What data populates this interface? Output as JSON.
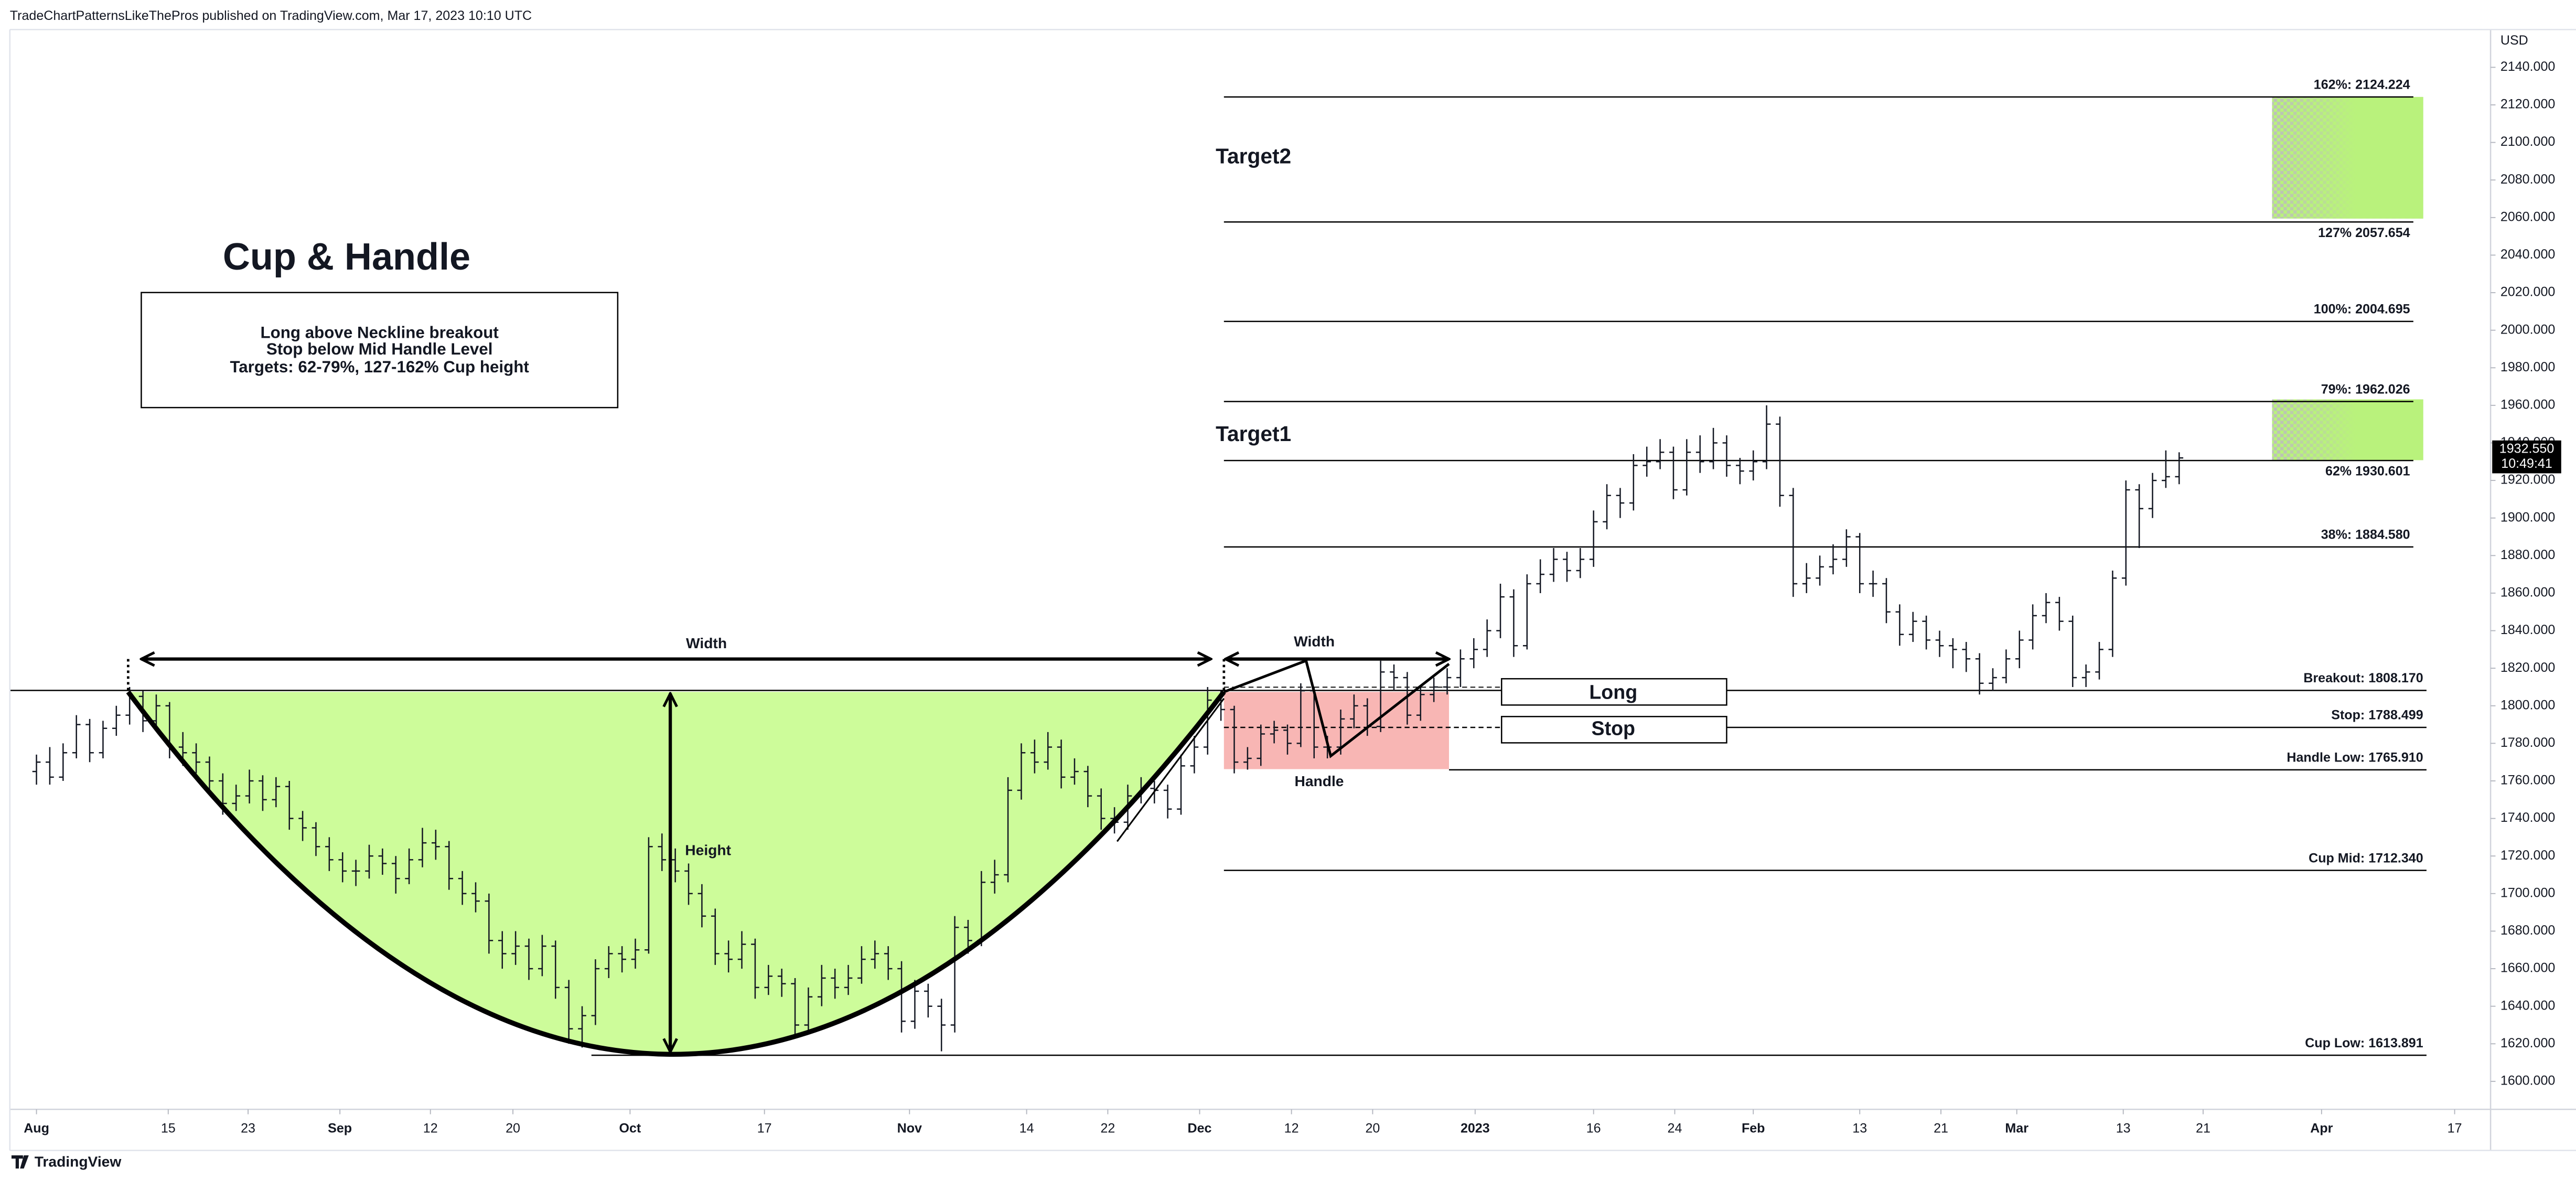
{
  "header": "TradeChartPatternsLikeThePros published on TradingView.com, Mar 17, 2023 10:10 UTC",
  "footer": "TradingView",
  "chart_data": {
    "type": "ohlc",
    "title": "Cup & Handle",
    "currency": "USD",
    "color": "#131722",
    "notes": [
      "Long above Neckline breakout",
      "Stop below Mid Handle Level",
      "Targets: 62-79%, 127-162% Cup height"
    ],
    "annotations": {
      "cup_width": "Width",
      "cup_height": "Height",
      "handle": "Handle",
      "handle_width": "Width",
      "target1": "Target1",
      "target2": "Target2",
      "long": "Long",
      "stop": "Stop"
    },
    "levels": [
      {
        "label": "162%: 2124.224",
        "value": 2124.224
      },
      {
        "label": "127% 2057.654",
        "value": 2057.654
      },
      {
        "label": "100%: 2004.695",
        "value": 2004.695
      },
      {
        "label": "79%: 1962.026",
        "value": 1962.026
      },
      {
        "label": "62% 1930.601",
        "value": 1930.601
      },
      {
        "label": "38%: 1884.580",
        "value": 1884.58
      },
      {
        "label": "Breakout: 1808.170",
        "value": 1808.17
      },
      {
        "label": "Stop: 1788.499",
        "value": 1788.499
      },
      {
        "label": "Handle Low: 1765.910",
        "value": 1765.91
      },
      {
        "label": "Cup Mid: 1712.340",
        "value": 1712.34
      },
      {
        "label": "Cup Low: 1613.891",
        "value": 1613.891
      }
    ],
    "last_price": {
      "value": 1932.55,
      "label": "1932.550",
      "countdown": "10:49:41"
    },
    "xlim": [
      -2,
      184.4
    ],
    "xticks": [
      {
        "value": 0,
        "label": "Aug"
      },
      {
        "value": 9.9,
        "label": "15"
      },
      {
        "value": 15.9,
        "label": "23"
      },
      {
        "value": 22.8,
        "label": "Sep"
      },
      {
        "value": 29.6,
        "label": "12"
      },
      {
        "value": 35.8,
        "label": "20"
      },
      {
        "value": 44.6,
        "label": "Oct"
      },
      {
        "value": 54.7,
        "label": "17"
      },
      {
        "value": 65.6,
        "label": "Nov"
      },
      {
        "value": 74.4,
        "label": "14"
      },
      {
        "value": 80.5,
        "label": "22"
      },
      {
        "value": 87.4,
        "label": "Dec"
      },
      {
        "value": 94.3,
        "label": "12"
      },
      {
        "value": 100.4,
        "label": "20"
      },
      {
        "value": 108.1,
        "label": "2023"
      },
      {
        "value": 117,
        "label": "16"
      },
      {
        "value": 123.1,
        "label": "24"
      },
      {
        "value": 129,
        "label": "Feb"
      },
      {
        "value": 137,
        "label": "13"
      },
      {
        "value": 143.1,
        "label": "21"
      },
      {
        "value": 148.8,
        "label": "Mar"
      },
      {
        "value": 156.8,
        "label": "13"
      },
      {
        "value": 162.8,
        "label": "21"
      },
      {
        "value": 171.7,
        "label": "Apr"
      },
      {
        "value": 181.7,
        "label": "17"
      }
    ],
    "ylim": [
      1585.1,
      2160.1
    ],
    "yticks": [
      {
        "value": 1600,
        "label": "1600.000"
      },
      {
        "value": 1620,
        "label": "1620.000"
      },
      {
        "value": 1640,
        "label": "1640.000"
      },
      {
        "value": 1660,
        "label": "1660.000"
      },
      {
        "value": 1680,
        "label": "1680.000"
      },
      {
        "value": 1700,
        "label": "1700.000"
      },
      {
        "value": 1720,
        "label": "1720.000"
      },
      {
        "value": 1740,
        "label": "1740.000"
      },
      {
        "value": 1760,
        "label": "1760.000"
      },
      {
        "value": 1780,
        "label": "1780.000"
      },
      {
        "value": 1800,
        "label": "1800.000"
      },
      {
        "value": 1820,
        "label": "1820.000"
      },
      {
        "value": 1840,
        "label": "1840.000"
      },
      {
        "value": 1860,
        "label": "1860.000"
      },
      {
        "value": 1880,
        "label": "1880.000"
      },
      {
        "value": 1900,
        "label": "1900.000"
      },
      {
        "value": 1920,
        "label": "1920.000"
      },
      {
        "value": 1940,
        "label": "1940.000"
      },
      {
        "value": 1960,
        "label": "1960.000"
      },
      {
        "value": 1980,
        "label": "1980.000"
      },
      {
        "value": 2000,
        "label": "2000.000"
      },
      {
        "value": 2020,
        "label": "2020.000"
      },
      {
        "value": 2040,
        "label": "2040.000"
      },
      {
        "value": 2060,
        "label": "2060.000"
      },
      {
        "value": 2080,
        "label": "2080.000"
      },
      {
        "value": 2100,
        "label": "2100.000"
      },
      {
        "value": 2120,
        "label": "2120.000"
      },
      {
        "value": 2140,
        "label": "2140.000"
      }
    ],
    "ohlc": [
      [
        1765,
        1774,
        1758,
        1770
      ],
      [
        1770,
        1778,
        1758,
        1762
      ],
      [
        1762,
        1780,
        1760,
        1775
      ],
      [
        1775,
        1795,
        1772,
        1790
      ],
      [
        1790,
        1793,
        1770,
        1775
      ],
      [
        1775,
        1792,
        1772,
        1788
      ],
      [
        1788,
        1800,
        1784,
        1795
      ],
      [
        1795,
        1810,
        1790,
        1805
      ],
      [
        1805,
        1808,
        1786,
        1792
      ],
      [
        1792,
        1806,
        1788,
        1800
      ],
      [
        1800,
        1802,
        1772,
        1778
      ],
      [
        1778,
        1786,
        1768,
        1775
      ],
      [
        1775,
        1780,
        1764,
        1770
      ],
      [
        1770,
        1773,
        1755,
        1760
      ],
      [
        1760,
        1764,
        1742,
        1748
      ],
      [
        1748,
        1758,
        1744,
        1752
      ],
      [
        1752,
        1766,
        1748,
        1760
      ],
      [
        1760,
        1763,
        1744,
        1750
      ],
      [
        1750,
        1762,
        1746,
        1757
      ],
      [
        1757,
        1760,
        1734,
        1740
      ],
      [
        1740,
        1744,
        1728,
        1735
      ],
      [
        1735,
        1738,
        1720,
        1725
      ],
      [
        1725,
        1730,
        1712,
        1718
      ],
      [
        1718,
        1722,
        1706,
        1712
      ],
      [
        1712,
        1718,
        1704,
        1712
      ],
      [
        1712,
        1726,
        1708,
        1720
      ],
      [
        1720,
        1724,
        1710,
        1716
      ],
      [
        1716,
        1720,
        1700,
        1708
      ],
      [
        1708,
        1724,
        1705,
        1718
      ],
      [
        1718,
        1735,
        1714,
        1727
      ],
      [
        1727,
        1734,
        1718,
        1725
      ],
      [
        1725,
        1728,
        1702,
        1708
      ],
      [
        1708,
        1712,
        1694,
        1700
      ],
      [
        1700,
        1706,
        1690,
        1696
      ],
      [
        1696,
        1700,
        1668,
        1675
      ],
      [
        1675,
        1680,
        1660,
        1668
      ],
      [
        1668,
        1680,
        1662,
        1672
      ],
      [
        1672,
        1676,
        1654,
        1660
      ],
      [
        1660,
        1678,
        1656,
        1672
      ],
      [
        1672,
        1675,
        1644,
        1650
      ],
      [
        1650,
        1654,
        1620,
        1628
      ],
      [
        1628,
        1640,
        1618,
        1635
      ],
      [
        1635,
        1665,
        1630,
        1660
      ],
      [
        1660,
        1672,
        1655,
        1668
      ],
      [
        1668,
        1672,
        1658,
        1665
      ],
      [
        1665,
        1676,
        1660,
        1670
      ],
      [
        1670,
        1730,
        1668,
        1725
      ],
      [
        1725,
        1732,
        1712,
        1718
      ],
      [
        1718,
        1724,
        1706,
        1712
      ],
      [
        1712,
        1716,
        1694,
        1700
      ],
      [
        1700,
        1705,
        1682,
        1688
      ],
      [
        1688,
        1692,
        1662,
        1668
      ],
      [
        1668,
        1675,
        1658,
        1665
      ],
      [
        1665,
        1680,
        1660,
        1673
      ],
      [
        1673,
        1676,
        1644,
        1650
      ],
      [
        1650,
        1662,
        1646,
        1656
      ],
      [
        1656,
        1660,
        1645,
        1652
      ],
      [
        1652,
        1655,
        1624,
        1630
      ],
      [
        1630,
        1650,
        1626,
        1645
      ],
      [
        1645,
        1662,
        1640,
        1655
      ],
      [
        1655,
        1660,
        1644,
        1650
      ],
      [
        1650,
        1662,
        1646,
        1655
      ],
      [
        1655,
        1672,
        1652,
        1665
      ],
      [
        1665,
        1675,
        1660,
        1668
      ],
      [
        1668,
        1672,
        1654,
        1660
      ],
      [
        1660,
        1664,
        1626,
        1632
      ],
      [
        1632,
        1654,
        1628,
        1648
      ],
      [
        1648,
        1652,
        1634,
        1640
      ],
      [
        1640,
        1644,
        1616,
        1630
      ],
      [
        1630,
        1688,
        1626,
        1682
      ],
      [
        1682,
        1686,
        1668,
        1675
      ],
      [
        1675,
        1712,
        1672,
        1706
      ],
      [
        1706,
        1718,
        1700,
        1710
      ],
      [
        1710,
        1762,
        1706,
        1755
      ],
      [
        1755,
        1780,
        1750,
        1775
      ],
      [
        1775,
        1782,
        1764,
        1770
      ],
      [
        1770,
        1786,
        1766,
        1778
      ],
      [
        1778,
        1782,
        1756,
        1762
      ],
      [
        1762,
        1772,
        1758,
        1765
      ],
      [
        1765,
        1768,
        1746,
        1752
      ],
      [
        1752,
        1756,
        1734,
        1740
      ],
      [
        1740,
        1746,
        1732,
        1738
      ],
      [
        1738,
        1758,
        1734,
        1752
      ],
      [
        1752,
        1762,
        1748,
        1756
      ],
      [
        1756,
        1760,
        1748,
        1755
      ],
      [
        1755,
        1758,
        1740,
        1745
      ],
      [
        1745,
        1774,
        1742,
        1768
      ],
      [
        1768,
        1784,
        1764,
        1778
      ],
      [
        1778,
        1810,
        1774,
        1803
      ],
      [
        1803,
        1808,
        1792,
        1798
      ],
      [
        1798,
        1800,
        1764,
        1770
      ],
      [
        1770,
        1778,
        1766,
        1772
      ],
      [
        1772,
        1790,
        1768,
        1785
      ],
      [
        1785,
        1792,
        1780,
        1787
      ],
      [
        1787,
        1790,
        1774,
        1780
      ],
      [
        1780,
        1812,
        1778,
        1808
      ],
      [
        1808,
        1810,
        1772,
        1778
      ],
      [
        1778,
        1784,
        1772,
        1778
      ],
      [
        1778,
        1798,
        1774,
        1793
      ],
      [
        1793,
        1806,
        1788,
        1800
      ],
      [
        1800,
        1804,
        1784,
        1789
      ],
      [
        1789,
        1824,
        1786,
        1818
      ],
      [
        1818,
        1822,
        1808,
        1815
      ],
      [
        1815,
        1818,
        1790,
        1795
      ],
      [
        1795,
        1810,
        1792,
        1806
      ],
      [
        1806,
        1815,
        1802,
        1810
      ],
      [
        1810,
        1820,
        1806,
        1815
      ],
      [
        1815,
        1830,
        1810,
        1825
      ],
      [
        1825,
        1836,
        1820,
        1830
      ],
      [
        1830,
        1846,
        1826,
        1840
      ],
      [
        1840,
        1865,
        1836,
        1858
      ],
      [
        1858,
        1862,
        1826,
        1832
      ],
      [
        1832,
        1870,
        1830,
        1865
      ],
      [
        1865,
        1878,
        1860,
        1870
      ],
      [
        1870,
        1884,
        1866,
        1878
      ],
      [
        1878,
        1882,
        1866,
        1872
      ],
      [
        1872,
        1884,
        1868,
        1878
      ],
      [
        1878,
        1904,
        1874,
        1898
      ],
      [
        1898,
        1918,
        1894,
        1912
      ],
      [
        1912,
        1916,
        1900,
        1908
      ],
      [
        1908,
        1934,
        1904,
        1928
      ],
      [
        1928,
        1938,
        1922,
        1930
      ],
      [
        1930,
        1942,
        1926,
        1935
      ],
      [
        1935,
        1938,
        1910,
        1915
      ],
      [
        1915,
        1942,
        1912,
        1935
      ],
      [
        1935,
        1944,
        1924,
        1930
      ],
      [
        1930,
        1948,
        1926,
        1940
      ],
      [
        1940,
        1944,
        1922,
        1928
      ],
      [
        1928,
        1932,
        1918,
        1925
      ],
      [
        1925,
        1936,
        1920,
        1930
      ],
      [
        1930,
        1960,
        1926,
        1950
      ],
      [
        1950,
        1954,
        1906,
        1912
      ],
      [
        1912,
        1916,
        1858,
        1865
      ],
      [
        1865,
        1876,
        1860,
        1868
      ],
      [
        1868,
        1880,
        1864,
        1874
      ],
      [
        1874,
        1886,
        1870,
        1878
      ],
      [
        1878,
        1894,
        1874,
        1890
      ],
      [
        1890,
        1892,
        1860,
        1865
      ],
      [
        1865,
        1872,
        1858,
        1865
      ],
      [
        1865,
        1868,
        1844,
        1850
      ],
      [
        1850,
        1854,
        1832,
        1838
      ],
      [
        1838,
        1850,
        1834,
        1845
      ],
      [
        1845,
        1848,
        1830,
        1835
      ],
      [
        1835,
        1840,
        1826,
        1832
      ],
      [
        1832,
        1836,
        1820,
        1830
      ],
      [
        1830,
        1834,
        1818,
        1825
      ],
      [
        1825,
        1828,
        1806,
        1812
      ],
      [
        1812,
        1820,
        1808,
        1815
      ],
      [
        1815,
        1830,
        1812,
        1825
      ],
      [
        1825,
        1840,
        1820,
        1835
      ],
      [
        1835,
        1854,
        1830,
        1848
      ],
      [
        1848,
        1860,
        1844,
        1855
      ],
      [
        1855,
        1858,
        1840,
        1845
      ],
      [
        1845,
        1848,
        1810,
        1815
      ],
      [
        1815,
        1822,
        1810,
        1818
      ],
      [
        1818,
        1834,
        1814,
        1830
      ],
      [
        1830,
        1872,
        1826,
        1868
      ],
      [
        1868,
        1920,
        1864,
        1915
      ],
      [
        1915,
        1918,
        1884,
        1905
      ],
      [
        1905,
        1924,
        1900,
        1920
      ],
      [
        1920,
        1936,
        1916,
        1922
      ],
      [
        1922,
        1935,
        1918,
        1932
      ]
    ]
  }
}
